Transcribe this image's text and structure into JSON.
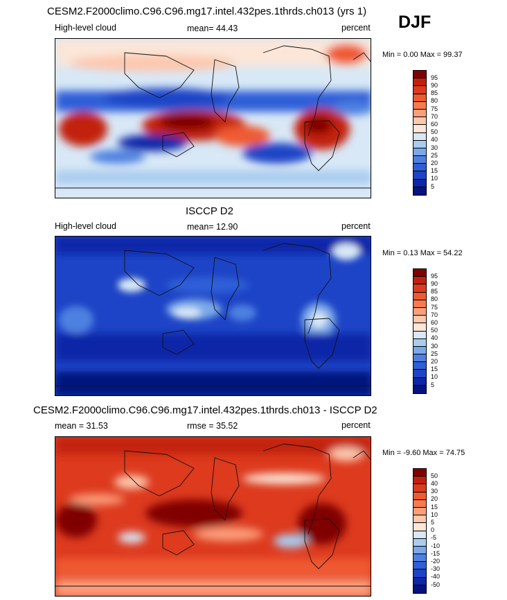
{
  "season": "DJF",
  "panels": [
    {
      "title": "CESM2.F2000climo.C96.C96.mg17.intel.432pes.1thrds.ch013 (yrs 1)",
      "left_label": "High-level cloud",
      "mid_label": "mean=  44.43",
      "right_label": "percent",
      "minmax": "Min =   0.00 Max =  99.37",
      "colorbar_labels": [
        "95",
        "90",
        "85",
        "80",
        "75",
        "70",
        "60",
        "50",
        "40",
        "30",
        "25",
        "20",
        "15",
        "10",
        "5"
      ],
      "colorbar_colors": [
        "#800000",
        "#c2200e",
        "#dd3a1e",
        "#ef5a32",
        "#f7794d",
        "#fb9e7a",
        "#fdc7ae",
        "#fbe6d8",
        "#d8e8f6",
        "#a9ccef",
        "#7aa8e8",
        "#4e80e0",
        "#2e5fd8",
        "#1d44c6",
        "#0c27a8",
        "#06127e"
      ]
    },
    {
      "title": "ISCCP D2",
      "left_label": "High-level cloud",
      "mid_label": "mean=  12.90",
      "right_label": "percent",
      "minmax": "Min =   0.13 Max =  54.22",
      "colorbar_labels": [
        "95",
        "90",
        "85",
        "80",
        "75",
        "70",
        "60",
        "50",
        "40",
        "30",
        "25",
        "20",
        "15",
        "10",
        "5"
      ],
      "colorbar_colors": [
        "#800000",
        "#c2200e",
        "#dd3a1e",
        "#ef5a32",
        "#f7794d",
        "#fb9e7a",
        "#fdc7ae",
        "#fbe6d8",
        "#d8e8f6",
        "#a9ccef",
        "#7aa8e8",
        "#4e80e0",
        "#2e5fd8",
        "#1d44c6",
        "#0c27a8",
        "#06127e"
      ]
    },
    {
      "title": "CESM2.F2000climo.C96.C96.mg17.intel.432pes.1thrds.ch013 - ISCCP D2",
      "left_label": "mean =  31.53",
      "mid_label": "rmse =  35.52",
      "right_label": "percent",
      "minmax": "Min = -9.60 Max =  74.75",
      "colorbar_labels": [
        "50",
        "40",
        "30",
        "20",
        "15",
        "10",
        "5",
        "0",
        "-5",
        "-10",
        "-15",
        "-20",
        "-30",
        "-40",
        "-50"
      ],
      "colorbar_colors": [
        "#800000",
        "#c2200e",
        "#dd3a1e",
        "#ef5a32",
        "#f7794d",
        "#fb9e7a",
        "#fdc7ae",
        "#fbe6d8",
        "#d8e8f6",
        "#a9ccef",
        "#7aa8e8",
        "#4e80e0",
        "#2e5fd8",
        "#1d44c6",
        "#0c27a8",
        "#06127e"
      ]
    }
  ]
}
